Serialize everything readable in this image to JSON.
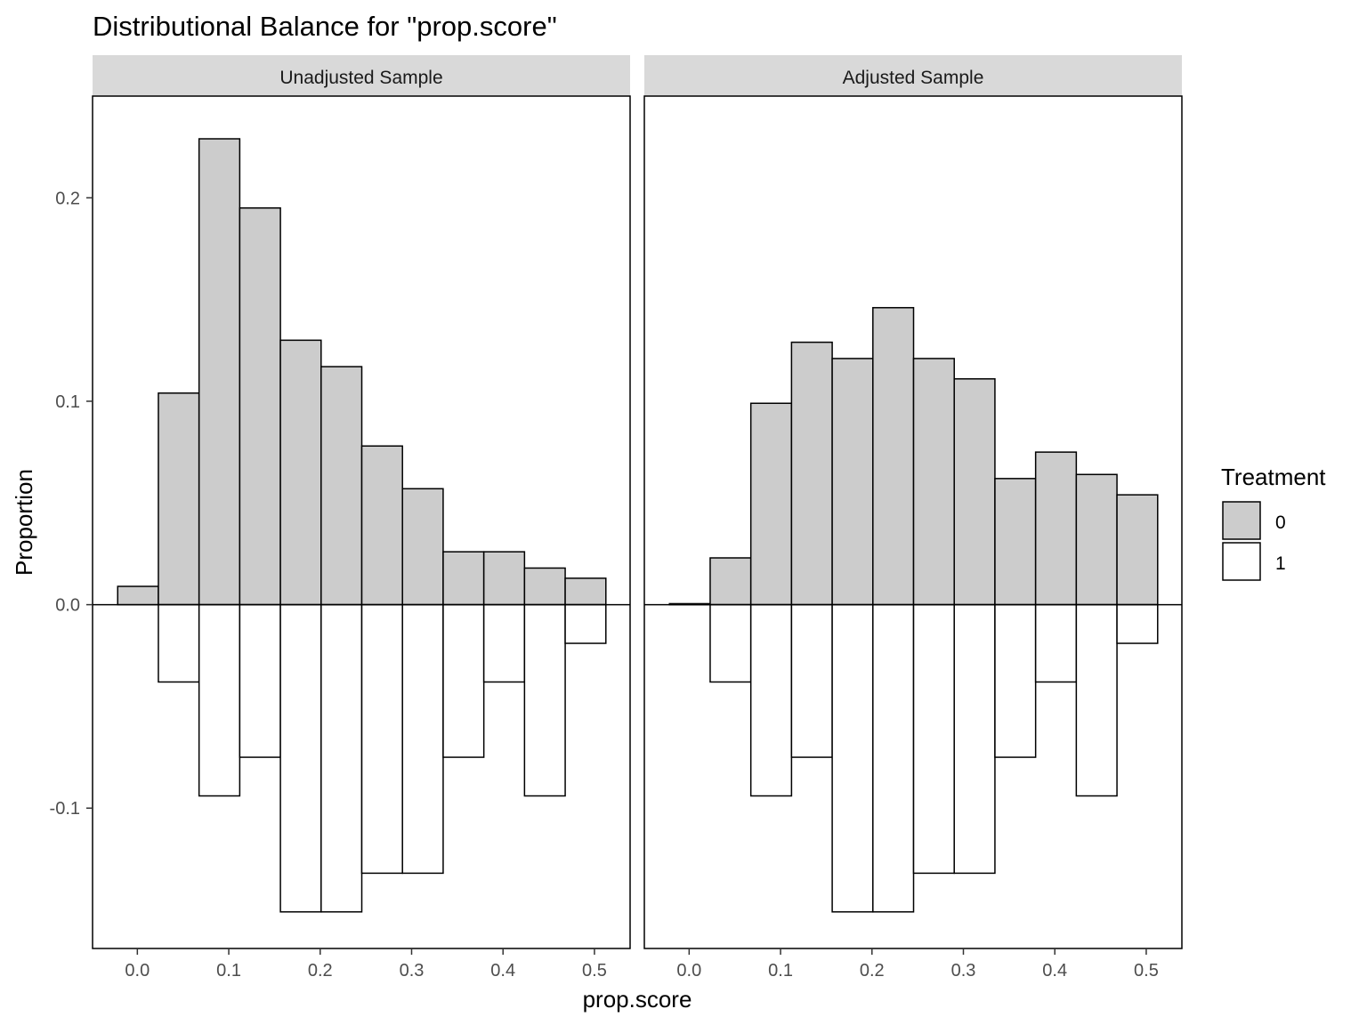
{
  "chart_data": {
    "type": "bar",
    "title": "Distributional Balance for \"prop.score\"",
    "xlabel": "prop.score",
    "ylabel": "Proportion",
    "xlim": [
      -0.049,
      0.539
    ],
    "ylim": [
      -0.169,
      0.25
    ],
    "x_ticks": [
      0.0,
      0.1,
      0.2,
      0.3,
      0.4,
      0.5
    ],
    "x_tick_labels": [
      "0.0",
      "0.1",
      "0.2",
      "0.3",
      "0.4",
      "0.5"
    ],
    "y_ticks": [
      0.2,
      0.1,
      0.0,
      -0.1
    ],
    "y_tick_labels": [
      "0.2",
      "0.1",
      "0.0",
      "-0.1"
    ],
    "grid": false,
    "bin_edges": [
      -0.0215,
      0.023,
      0.0675,
      0.112,
      0.1565,
      0.201,
      0.2455,
      0.29,
      0.3345,
      0.379,
      0.4235,
      0.468,
      0.5125
    ],
    "legend": {
      "title": "Treatment",
      "position": "right",
      "entries": [
        {
          "label": "0",
          "color": "#cccccc"
        },
        {
          "label": "1",
          "color": "#ffffff"
        }
      ]
    },
    "colors": {
      "treatment_0": "#cccccc",
      "treatment_1": "#ffffff",
      "outline": "#000000",
      "strip": "#d9d9d9"
    },
    "panels": [
      {
        "label": "Unadjusted Sample",
        "series": [
          {
            "name": "0",
            "values": [
              0.009,
              0.104,
              0.229,
              0.195,
              0.13,
              0.117,
              0.078,
              0.057,
              0.026,
              0.026,
              0.018,
              0.013
            ]
          },
          {
            "name": "1",
            "values": [
              0.0,
              -0.038,
              -0.094,
              -0.075,
              -0.151,
              -0.151,
              -0.132,
              -0.132,
              -0.075,
              -0.038,
              -0.094,
              -0.019
            ]
          }
        ]
      },
      {
        "label": "Adjusted Sample",
        "series": [
          {
            "name": "0",
            "values": [
              0.0005,
              0.023,
              0.099,
              0.129,
              0.121,
              0.146,
              0.121,
              0.111,
              0.062,
              0.075,
              0.064,
              0.054
            ]
          },
          {
            "name": "1",
            "values": [
              0.0,
              -0.038,
              -0.094,
              -0.075,
              -0.151,
              -0.151,
              -0.132,
              -0.132,
              -0.075,
              -0.038,
              -0.094,
              -0.019
            ]
          }
        ]
      }
    ]
  }
}
